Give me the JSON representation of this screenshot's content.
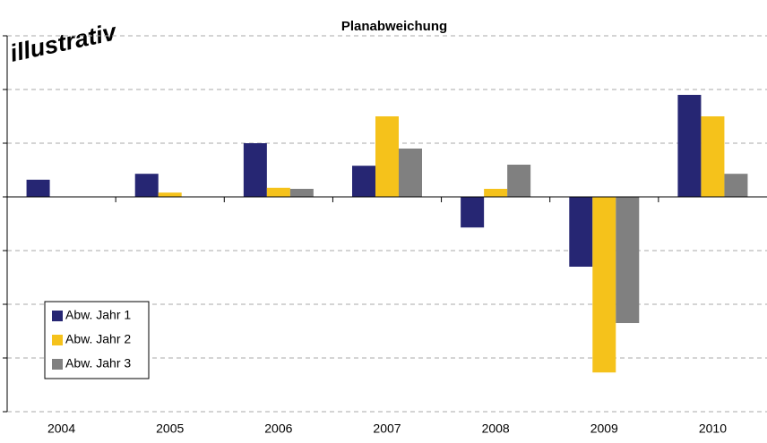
{
  "chart_data": {
    "type": "bar",
    "title": "Planabweichung",
    "annotation": "illustrativ",
    "categories": [
      "2004",
      "2005",
      "2006",
      "2007",
      "2008",
      "2009",
      "2010"
    ],
    "series": [
      {
        "name": "Abw. Jahr 1",
        "color": "#262673",
        "values": [
          0.32,
          0.43,
          1.0,
          0.58,
          -0.57,
          -1.3,
          1.9
        ]
      },
      {
        "name": "Abw. Jahr 2",
        "color": "#f5c21b",
        "values": [
          null,
          0.08,
          0.17,
          1.5,
          0.15,
          -3.27,
          1.5
        ]
      },
      {
        "name": "Abw. Jahr 3",
        "color": "#808080",
        "values": [
          null,
          null,
          0.15,
          0.9,
          0.6,
          -2.35,
          0.43
        ]
      }
    ],
    "ylim": [
      -4,
      3
    ],
    "yticks": [
      -4,
      -3,
      -2,
      -1,
      0,
      1,
      2,
      3
    ],
    "grid": true,
    "legend": "lower left"
  }
}
